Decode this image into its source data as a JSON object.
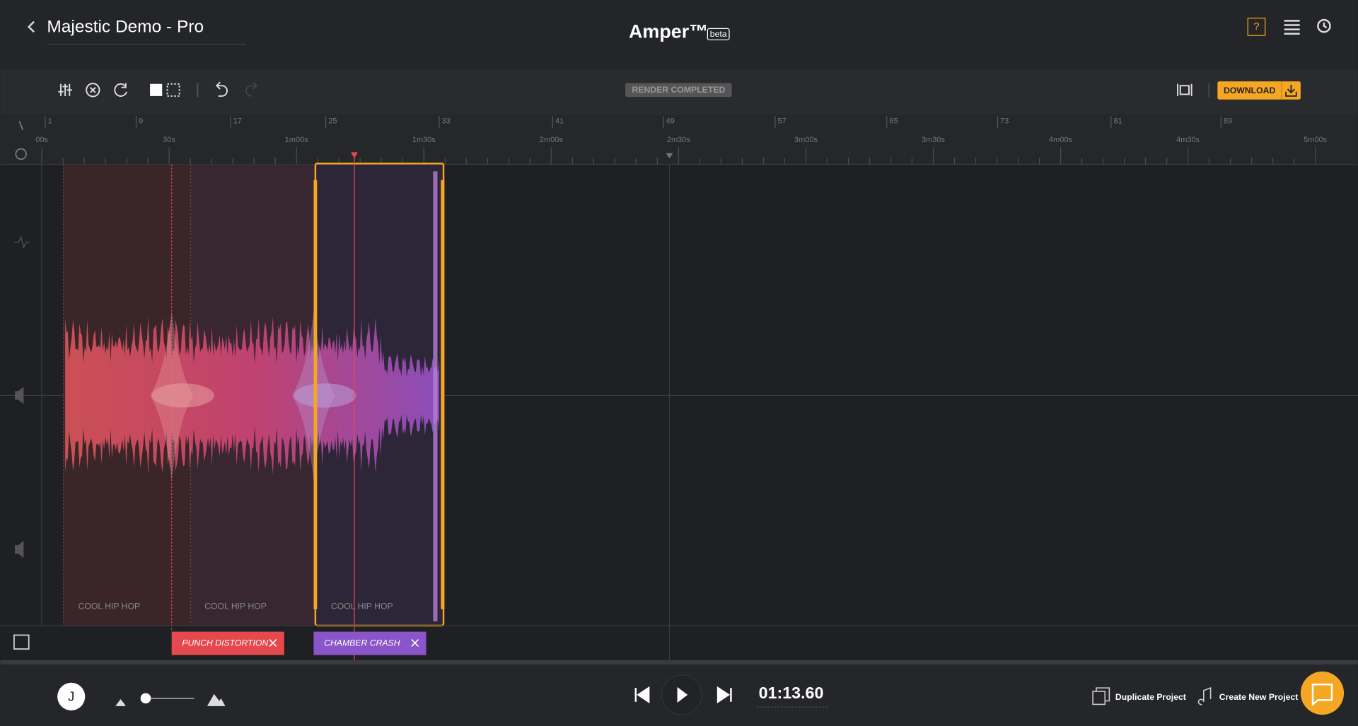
{
  "header": {
    "project_title": "Majestic Demo - Pro",
    "app_name": "Amper™",
    "app_badge": "beta"
  },
  "toolbar": {
    "status": "RENDER COMPLETED",
    "download": "DOWNLOAD"
  },
  "ruler": {
    "bars": [
      "1",
      "9",
      "17",
      "25",
      "33",
      "41",
      "49",
      "57",
      "65",
      "73",
      "81",
      "89"
    ],
    "times": [
      "00s",
      "30s",
      "1m00s",
      "1m30s",
      "2m00s",
      "2m30s",
      "3m00s",
      "3m30s",
      "4m00s",
      "4m30s",
      "5m00s"
    ]
  },
  "regions": [
    "COOL HIP HOP",
    "COOL HIP HOP",
    "COOL HIP HOP"
  ],
  "tags": [
    "PUNCH DISTORTION",
    "CHAMBER CRASH"
  ],
  "footer": {
    "avatar": "J",
    "time": "01:13.60",
    "duplicate": "Duplicate Project",
    "create": "Create New Project"
  }
}
